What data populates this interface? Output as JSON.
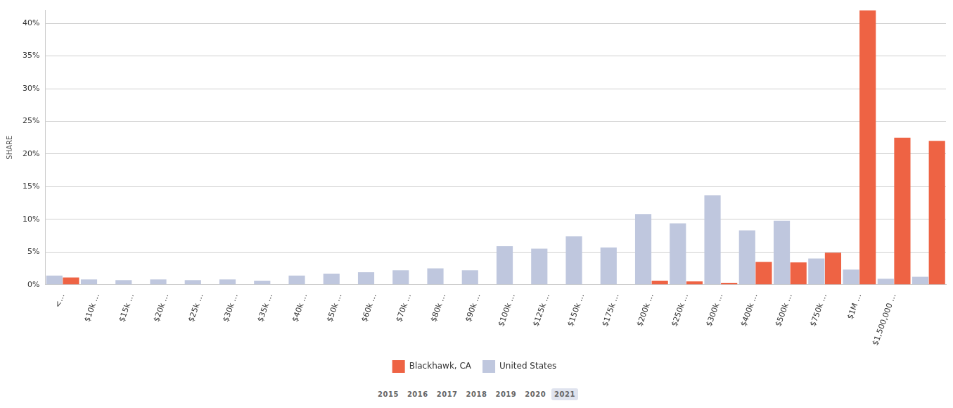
{
  "chart_data": {
    "type": "bar",
    "y_label": "SHARE",
    "categories": [
      "<…",
      "$10k …",
      "$15k …",
      "$20k …",
      "$25k …",
      "$30k …",
      "$35k …",
      "$40k …",
      "$50k …",
      "$60k …",
      "$70k …",
      "$80k …",
      "$90k …",
      "$100k …",
      "$125k …",
      "$150k …",
      "$175k …",
      "$200k …",
      "$250k …",
      "$300k …",
      "$400k …",
      "$500k …",
      "$750k …",
      "$1M …",
      "$1,500,000 …",
      null
    ],
    "series": [
      {
        "name": "Blackhawk, CA",
        "color": "#ee6344",
        "values": [
          1.1,
          0,
          0,
          0,
          0,
          0,
          0,
          0,
          0,
          0,
          0,
          0,
          0,
          0,
          0,
          0,
          0,
          0.6,
          0.5,
          0.3,
          3.5,
          3.4,
          4.9,
          42.0,
          22.5,
          22.0
        ]
      },
      {
        "name": "United States",
        "color": "#bfc7de",
        "values": [
          1.4,
          0.8,
          0.7,
          0.8,
          0.7,
          0.8,
          0.6,
          1.4,
          1.7,
          1.9,
          2.2,
          2.5,
          2.2,
          5.9,
          5.5,
          7.4,
          5.7,
          10.8,
          9.4,
          13.7,
          8.3,
          9.8,
          4.0,
          2.3,
          0.9,
          1.2
        ]
      }
    ],
    "ylim": [
      0,
      42
    ],
    "yticks": [
      {
        "value": 0,
        "label": "0%"
      },
      {
        "value": 5,
        "label": "5%"
      },
      {
        "value": 10,
        "label": "10%"
      },
      {
        "value": 15,
        "label": "15%"
      },
      {
        "value": 20,
        "label": "20%"
      },
      {
        "value": 25,
        "label": "25%"
      },
      {
        "value": 30,
        "label": "30%"
      },
      {
        "value": 35,
        "label": "35%"
      },
      {
        "value": 40,
        "label": "40%"
      }
    ],
    "grid": true,
    "legend": "bottom",
    "years": [
      "2015",
      "2016",
      "2017",
      "2018",
      "2019",
      "2020",
      "2021"
    ],
    "selected_year": "2021"
  }
}
